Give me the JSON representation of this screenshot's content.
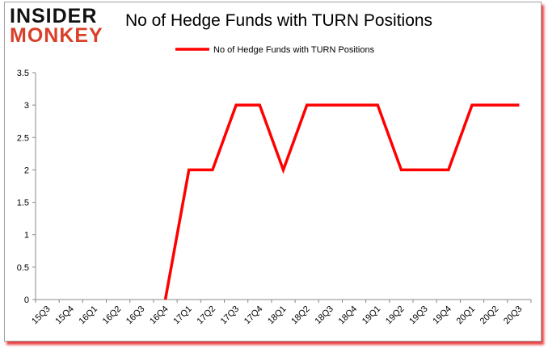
{
  "logo": {
    "line1": "INSIDER",
    "line2": "MONKEY"
  },
  "chart_data": {
    "type": "line",
    "title": "No of Hedge Funds with TURN Positions",
    "xlabel": "",
    "ylabel": "",
    "categories": [
      "15Q3",
      "15Q4",
      "16Q1",
      "16Q2",
      "16Q3",
      "16Q4",
      "17Q1",
      "17Q2",
      "17Q3",
      "17Q4",
      "18Q1",
      "18Q2",
      "18Q3",
      "18Q4",
      "19Q1",
      "19Q2",
      "19Q3",
      "19Q4",
      "20Q1",
      "20Q2",
      "20Q3"
    ],
    "series": [
      {
        "name": "No of Hedge Funds with TURN Positions",
        "color": "#ff0000",
        "values": [
          null,
          null,
          null,
          null,
          null,
          0,
          2,
          2,
          3,
          3,
          2,
          3,
          3,
          3,
          3,
          2,
          2,
          2,
          3,
          3,
          3
        ]
      }
    ],
    "ylim": [
      0,
      3.5
    ],
    "yticks": [
      "0",
      "0.5",
      "1",
      "1.5",
      "2",
      "2.5",
      "3",
      "3.5"
    ],
    "grid": false,
    "legend": "top-center"
  }
}
